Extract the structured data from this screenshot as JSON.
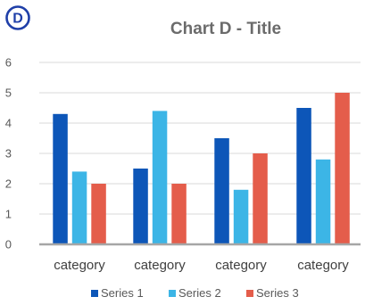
{
  "badge": {
    "letter": "D",
    "color": "#1f3fa8"
  },
  "chart_data": {
    "type": "bar",
    "title": "Chart D - Title",
    "xlabel": "",
    "ylabel": "",
    "categories": [
      "category",
      "category",
      "category",
      "category"
    ],
    "series": [
      {
        "name": "Series 1",
        "color": "#0d56b8",
        "values": [
          4.3,
          2.5,
          3.5,
          4.5
        ]
      },
      {
        "name": "Series 2",
        "color": "#3cb5e6",
        "values": [
          2.4,
          4.4,
          1.8,
          2.8
        ]
      },
      {
        "name": "Series 3",
        "color": "#e45d4b",
        "values": [
          2.0,
          2.0,
          3.0,
          5.0
        ]
      }
    ],
    "ylim": [
      0,
      6
    ],
    "yticks": [
      "0",
      "1",
      "2",
      "3",
      "4",
      "5",
      "6"
    ],
    "grid": true,
    "legend_position": "bottom"
  }
}
